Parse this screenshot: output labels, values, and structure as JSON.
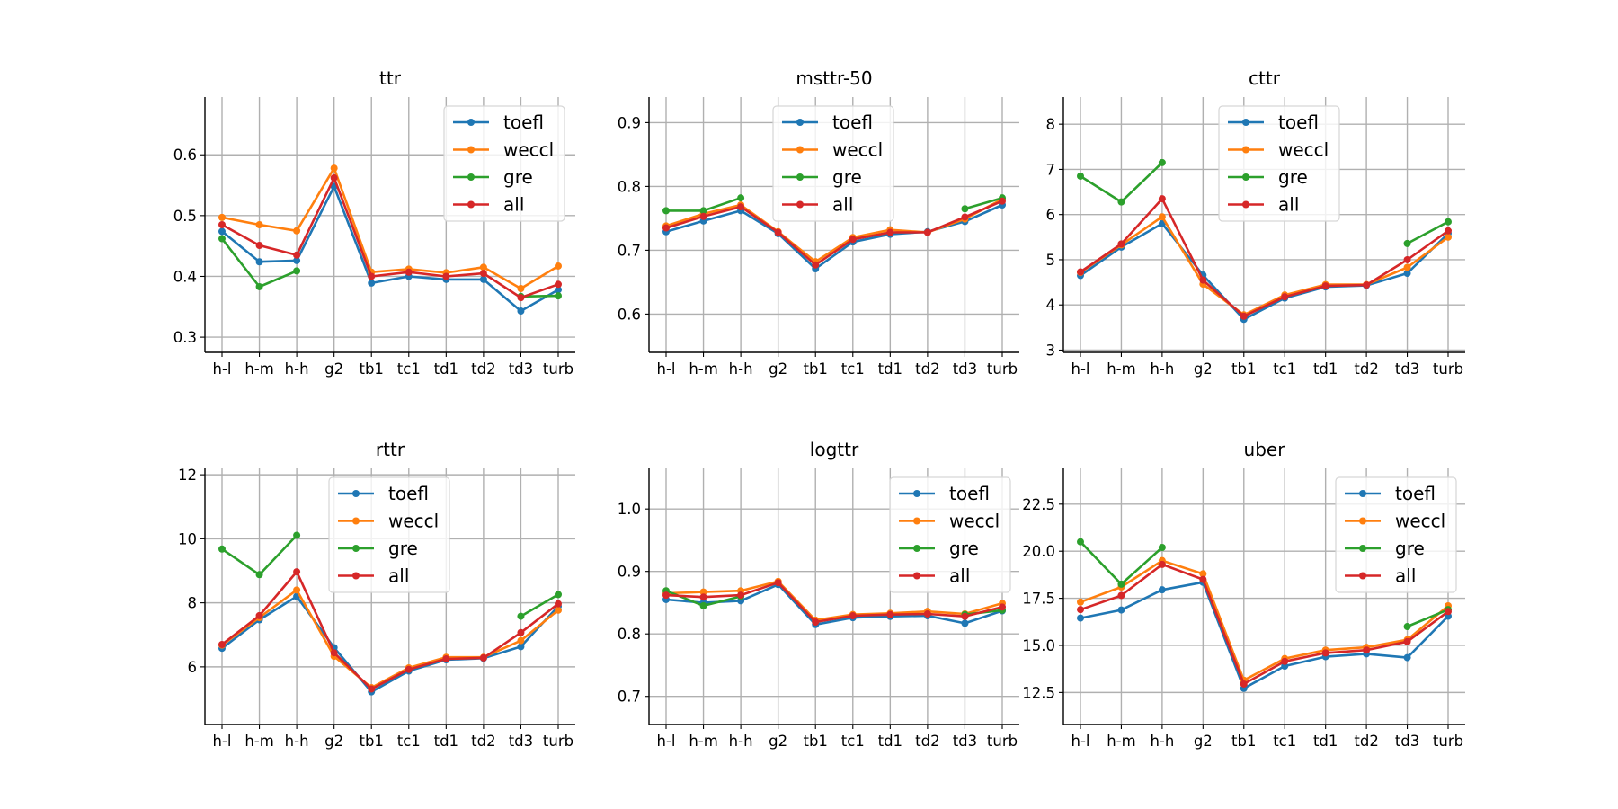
{
  "chart_data": [
    {
      "type": "line",
      "title": "ttr",
      "xlabel": "",
      "ylabel": "",
      "categories": [
        "h-l",
        "h-m",
        "h-h",
        "g2",
        "tb1",
        "tc1",
        "td1",
        "td2",
        "td3",
        "turb"
      ],
      "ylim": [
        0.275,
        0.695
      ],
      "yticks": [
        0.3,
        0.4,
        0.5,
        0.6
      ],
      "ytick_labels": [
        "0.3",
        "0.4",
        "0.5",
        "0.6"
      ],
      "grid": true,
      "legend_position": "upper right",
      "series": [
        {
          "name": "toefl",
          "color": "#1f77b4",
          "values": [
            0.474,
            0.424,
            0.426,
            0.548,
            0.389,
            0.4,
            0.395,
            0.395,
            0.343,
            0.378
          ]
        },
        {
          "name": "weccl",
          "color": "#ff7f0e",
          "values": [
            0.497,
            0.485,
            0.475,
            0.578,
            0.407,
            0.412,
            0.406,
            0.415,
            0.38,
            0.417
          ]
        },
        {
          "name": "gre",
          "color": "#2ca02c",
          "values": [
            0.462,
            0.383,
            0.409,
            null,
            null,
            null,
            null,
            null,
            0.367,
            0.368
          ]
        },
        {
          "name": "all",
          "color": "#d62728",
          "values": [
            0.485,
            0.451,
            0.435,
            0.562,
            0.4,
            0.407,
            0.4,
            0.405,
            0.365,
            0.387
          ]
        }
      ]
    },
    {
      "type": "line",
      "title": "msttr-50",
      "xlabel": "",
      "ylabel": "",
      "categories": [
        "h-l",
        "h-m",
        "h-h",
        "g2",
        "tb1",
        "tc1",
        "td1",
        "td2",
        "td3",
        "turb"
      ],
      "ylim": [
        0.54,
        0.94
      ],
      "yticks": [
        0.6,
        0.7,
        0.8,
        0.9
      ],
      "ytick_labels": [
        "0.6",
        "0.7",
        "0.8",
        "0.9"
      ],
      "grid": true,
      "legend_position": "upper center",
      "series": [
        {
          "name": "toefl",
          "color": "#1f77b4",
          "values": [
            0.729,
            0.746,
            0.762,
            0.726,
            0.671,
            0.713,
            0.725,
            0.729,
            0.745,
            0.771
          ]
        },
        {
          "name": "weccl",
          "color": "#ff7f0e",
          "values": [
            0.738,
            0.757,
            0.771,
            0.729,
            0.682,
            0.72,
            0.732,
            0.728,
            0.749,
            0.78
          ]
        },
        {
          "name": "gre",
          "color": "#2ca02c",
          "values": [
            0.762,
            0.762,
            0.782,
            null,
            null,
            null,
            null,
            null,
            0.765,
            0.782
          ]
        },
        {
          "name": "all",
          "color": "#d62728",
          "values": [
            0.735,
            0.753,
            0.768,
            0.728,
            0.677,
            0.717,
            0.728,
            0.728,
            0.752,
            0.777
          ]
        }
      ]
    },
    {
      "type": "line",
      "title": "cttr",
      "xlabel": "",
      "ylabel": "",
      "categories": [
        "h-l",
        "h-m",
        "h-h",
        "g2",
        "tb1",
        "tc1",
        "td1",
        "td2",
        "td3",
        "turb"
      ],
      "ylim": [
        2.95,
        8.6
      ],
      "yticks": [
        3,
        4,
        5,
        6,
        7,
        8
      ],
      "ytick_labels": [
        "3",
        "4",
        "5",
        "6",
        "7",
        "8"
      ],
      "grid": true,
      "legend_position": "upper center",
      "series": [
        {
          "name": "toefl",
          "color": "#1f77b4",
          "values": [
            4.65,
            5.28,
            5.8,
            4.66,
            3.68,
            4.15,
            4.4,
            4.43,
            4.7,
            5.58
          ]
        },
        {
          "name": "weccl",
          "color": "#ff7f0e",
          "values": [
            4.72,
            5.33,
            5.95,
            4.46,
            3.78,
            4.22,
            4.45,
            4.45,
            4.83,
            5.5
          ]
        },
        {
          "name": "gre",
          "color": "#2ca02c",
          "values": [
            6.85,
            6.28,
            7.15,
            null,
            null,
            null,
            null,
            null,
            5.36,
            5.84
          ]
        },
        {
          "name": "all",
          "color": "#d62728",
          "values": [
            4.73,
            5.35,
            6.35,
            4.55,
            3.75,
            4.18,
            4.42,
            4.44,
            5.0,
            5.64
          ]
        }
      ]
    },
    {
      "type": "line",
      "title": "rttr",
      "xlabel": "",
      "ylabel": "",
      "categories": [
        "h-l",
        "h-m",
        "h-h",
        "g2",
        "tb1",
        "tc1",
        "td1",
        "td2",
        "td3",
        "turb"
      ],
      "ylim": [
        4.2,
        12.2
      ],
      "yticks": [
        6,
        8,
        10,
        12
      ],
      "ytick_labels": [
        "6",
        "8",
        "10",
        "12"
      ],
      "grid": true,
      "legend_position": "upper center",
      "series": [
        {
          "name": "toefl",
          "color": "#1f77b4",
          "values": [
            6.58,
            7.47,
            8.2,
            6.6,
            5.22,
            5.87,
            6.22,
            6.27,
            6.63,
            7.89
          ]
        },
        {
          "name": "weccl",
          "color": "#ff7f0e",
          "values": [
            6.68,
            7.54,
            8.4,
            6.33,
            5.35,
            5.97,
            6.3,
            6.3,
            6.82,
            7.77
          ]
        },
        {
          "name": "gre",
          "color": "#2ca02c",
          "values": [
            9.68,
            8.88,
            10.11,
            null,
            null,
            null,
            null,
            null,
            7.58,
            8.26
          ]
        },
        {
          "name": "all",
          "color": "#d62728",
          "values": [
            6.7,
            7.6,
            8.97,
            6.44,
            5.31,
            5.92,
            6.25,
            6.28,
            7.07,
            7.97
          ]
        }
      ]
    },
    {
      "type": "line",
      "title": "logttr",
      "xlabel": "",
      "ylabel": "",
      "categories": [
        "h-l",
        "h-m",
        "h-h",
        "g2",
        "tb1",
        "tc1",
        "td1",
        "td2",
        "td3",
        "turb"
      ],
      "ylim": [
        0.655,
        1.065
      ],
      "yticks": [
        0.7,
        0.8,
        0.9,
        1.0
      ],
      "ytick_labels": [
        "0.7",
        "0.8",
        "0.9",
        "1.0"
      ],
      "grid": true,
      "legend_position": "upper right",
      "series": [
        {
          "name": "toefl",
          "color": "#1f77b4",
          "values": [
            0.855,
            0.85,
            0.853,
            0.879,
            0.815,
            0.826,
            0.828,
            0.829,
            0.817,
            0.837
          ]
        },
        {
          "name": "weccl",
          "color": "#ff7f0e",
          "values": [
            0.865,
            0.867,
            0.869,
            0.884,
            0.822,
            0.831,
            0.833,
            0.836,
            0.832,
            0.849
          ]
        },
        {
          "name": "gre",
          "color": "#2ca02c",
          "values": [
            0.869,
            0.845,
            0.86,
            null,
            null,
            null,
            null,
            null,
            0.831,
            0.838
          ]
        },
        {
          "name": "all",
          "color": "#d62728",
          "values": [
            0.862,
            0.859,
            0.862,
            0.882,
            0.819,
            0.829,
            0.831,
            0.832,
            0.828,
            0.843
          ]
        }
      ]
    },
    {
      "type": "line",
      "title": "uber",
      "xlabel": "",
      "ylabel": "",
      "categories": [
        "h-l",
        "h-m",
        "h-h",
        "g2",
        "tb1",
        "tc1",
        "td1",
        "td2",
        "td3",
        "turb"
      ],
      "ylim": [
        10.8,
        24.4
      ],
      "yticks": [
        12.5,
        15.0,
        17.5,
        20.0,
        22.5
      ],
      "ytick_labels": [
        "12.5",
        "15.0",
        "17.5",
        "20.0",
        "22.5"
      ],
      "grid": true,
      "legend_position": "upper right",
      "series": [
        {
          "name": "toefl",
          "color": "#1f77b4",
          "values": [
            16.45,
            16.88,
            17.95,
            18.35,
            12.72,
            13.9,
            14.4,
            14.55,
            14.35,
            16.55
          ]
        },
        {
          "name": "weccl",
          "color": "#ff7f0e",
          "values": [
            17.3,
            18.1,
            19.5,
            18.8,
            13.15,
            14.3,
            14.75,
            14.9,
            15.3,
            17.1
          ]
        },
        {
          "name": "gre",
          "color": "#2ca02c",
          "values": [
            20.5,
            18.25,
            20.2,
            null,
            null,
            null,
            null,
            null,
            16.0,
            16.9
          ]
        },
        {
          "name": "all",
          "color": "#d62728",
          "values": [
            16.9,
            17.65,
            19.3,
            18.5,
            12.95,
            14.15,
            14.6,
            14.75,
            15.2,
            16.8
          ]
        }
      ]
    }
  ]
}
